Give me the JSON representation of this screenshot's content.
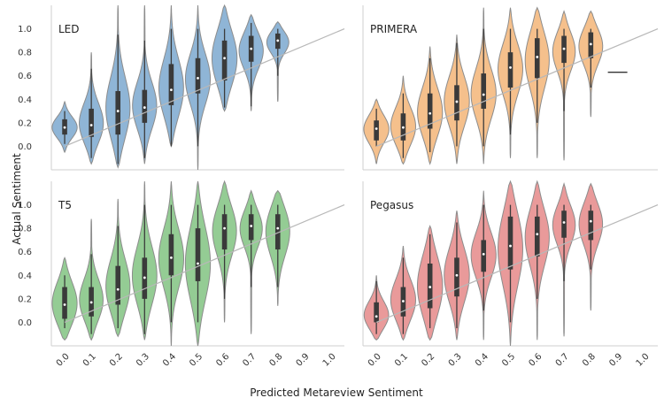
{
  "chart_data": {
    "type": "violin",
    "xlabel": "Predicted Metareview Sentiment",
    "ylabel": "Actual Sentiment",
    "x_ticks": [
      "0.0",
      "0.1",
      "0.2",
      "0.3",
      "0.4",
      "0.5",
      "0.6",
      "0.7",
      "0.8",
      "0.9",
      "1.0"
    ],
    "y_ticks": [
      "0.0",
      "0.2",
      "0.4",
      "0.6",
      "0.8",
      "1.0"
    ],
    "xlim": [
      -0.05,
      1.05
    ],
    "ylim": [
      -0.2,
      1.2
    ],
    "reference_line": {
      "from": [
        0,
        0
      ],
      "to": [
        1.05,
        1.0
      ]
    },
    "panels": [
      {
        "title": "LED",
        "color": "#8fb5d6",
        "violins": [
          {
            "x": 0.0,
            "min": -0.05,
            "max": 0.38,
            "q1": 0.1,
            "median": 0.16,
            "q3": 0.23,
            "wlo": 0.02,
            "whi": 0.3
          },
          {
            "x": 0.1,
            "min": -0.15,
            "max": 0.8,
            "q1": 0.08,
            "median": 0.18,
            "q3": 0.32,
            "wlo": -0.1,
            "whi": 0.66
          },
          {
            "x": 0.2,
            "min": -0.18,
            "max": 1.2,
            "q1": 0.1,
            "median": 0.3,
            "q3": 0.47,
            "wlo": -0.15,
            "whi": 0.95
          },
          {
            "x": 0.3,
            "min": -0.15,
            "max": 1.2,
            "q1": 0.2,
            "median": 0.33,
            "q3": 0.48,
            "wlo": -0.1,
            "whi": 0.9
          },
          {
            "x": 0.4,
            "min": 0.0,
            "max": 1.2,
            "q1": 0.35,
            "median": 0.48,
            "q3": 0.7,
            "wlo": 0.0,
            "whi": 1.0
          },
          {
            "x": 0.5,
            "min": -0.2,
            "max": 1.2,
            "q1": 0.45,
            "median": 0.58,
            "q3": 0.75,
            "wlo": 0.0,
            "whi": 1.0
          },
          {
            "x": 0.6,
            "min": 0.3,
            "max": 1.2,
            "q1": 0.56,
            "median": 0.75,
            "q3": 0.9,
            "wlo": 0.33,
            "whi": 1.0
          },
          {
            "x": 0.7,
            "min": 0.3,
            "max": 1.12,
            "q1": 0.72,
            "median": 0.83,
            "q3": 0.94,
            "wlo": 0.34,
            "whi": 1.05
          },
          {
            "x": 0.8,
            "min": 0.38,
            "max": 1.06,
            "q1": 0.83,
            "median": 0.9,
            "q3": 0.96,
            "wlo": 0.6,
            "whi": 1.0
          }
        ]
      },
      {
        "title": "PRIMERA",
        "color": "#f5c08c",
        "violins": [
          {
            "x": 0.0,
            "min": -0.15,
            "max": 0.4,
            "q1": 0.05,
            "median": 0.15,
            "q3": 0.22,
            "wlo": 0.0,
            "whi": 0.32
          },
          {
            "x": 0.1,
            "min": -0.15,
            "max": 0.6,
            "q1": 0.05,
            "median": 0.16,
            "q3": 0.28,
            "wlo": -0.1,
            "whi": 0.45
          },
          {
            "x": 0.2,
            "min": -0.15,
            "max": 0.85,
            "q1": 0.15,
            "median": 0.28,
            "q3": 0.45,
            "wlo": -0.05,
            "whi": 0.75
          },
          {
            "x": 0.3,
            "min": -0.15,
            "max": 0.95,
            "q1": 0.22,
            "median": 0.38,
            "q3": 0.52,
            "wlo": 0.0,
            "whi": 0.88
          },
          {
            "x": 0.4,
            "min": -0.15,
            "max": 1.18,
            "q1": 0.32,
            "median": 0.44,
            "q3": 0.62,
            "wlo": 0.0,
            "whi": 1.0
          },
          {
            "x": 0.5,
            "min": -0.1,
            "max": 1.18,
            "q1": 0.5,
            "median": 0.67,
            "q3": 0.8,
            "wlo": 0.1,
            "whi": 1.0
          },
          {
            "x": 0.6,
            "min": -0.1,
            "max": 1.18,
            "q1": 0.58,
            "median": 0.76,
            "q3": 0.92,
            "wlo": 0.2,
            "whi": 1.0
          },
          {
            "x": 0.7,
            "min": -0.12,
            "max": 1.15,
            "q1": 0.71,
            "median": 0.83,
            "q3": 0.94,
            "wlo": 0.3,
            "whi": 1.0
          },
          {
            "x": 0.8,
            "min": 0.25,
            "max": 1.15,
            "q1": 0.75,
            "median": 0.87,
            "q3": 0.97,
            "wlo": 0.5,
            "whi": 1.0
          },
          {
            "x": 0.9,
            "flat": true,
            "value": 0.63
          }
        ]
      },
      {
        "title": "T5",
        "color": "#94cc94",
        "violins": [
          {
            "x": 0.0,
            "min": -0.15,
            "max": 0.55,
            "q1": 0.03,
            "median": 0.15,
            "q3": 0.3,
            "wlo": -0.05,
            "whi": 0.4
          },
          {
            "x": 0.1,
            "min": -0.15,
            "max": 0.88,
            "q1": 0.05,
            "median": 0.17,
            "q3": 0.3,
            "wlo": -0.1,
            "whi": 0.58
          },
          {
            "x": 0.2,
            "min": -0.12,
            "max": 1.05,
            "q1": 0.15,
            "median": 0.28,
            "q3": 0.48,
            "wlo": -0.05,
            "whi": 0.82
          },
          {
            "x": 0.3,
            "min": -0.15,
            "max": 1.2,
            "q1": 0.2,
            "median": 0.38,
            "q3": 0.55,
            "wlo": -0.1,
            "whi": 1.0
          },
          {
            "x": 0.4,
            "min": -0.2,
            "max": 1.2,
            "q1": 0.4,
            "median": 0.55,
            "q3": 0.75,
            "wlo": 0.0,
            "whi": 1.0
          },
          {
            "x": 0.5,
            "min": -0.2,
            "max": 1.2,
            "q1": 0.35,
            "median": 0.5,
            "q3": 0.8,
            "wlo": 0.0,
            "whi": 1.0
          },
          {
            "x": 0.6,
            "min": 0.0,
            "max": 1.2,
            "q1": 0.62,
            "median": 0.8,
            "q3": 0.92,
            "wlo": 0.2,
            "whi": 1.0
          },
          {
            "x": 0.7,
            "min": -0.1,
            "max": 1.12,
            "q1": 0.7,
            "median": 0.82,
            "q3": 0.92,
            "wlo": 0.3,
            "whi": 1.0
          },
          {
            "x": 0.8,
            "min": 0.14,
            "max": 1.12,
            "q1": 0.62,
            "median": 0.8,
            "q3": 0.92,
            "wlo": 0.3,
            "whi": 1.0
          }
        ]
      },
      {
        "title": "Pegasus",
        "color": "#e99a9a",
        "violins": [
          {
            "x": 0.0,
            "min": -0.15,
            "max": 0.4,
            "q1": 0.0,
            "median": 0.05,
            "q3": 0.17,
            "wlo": -0.1,
            "whi": 0.35
          },
          {
            "x": 0.1,
            "min": -0.15,
            "max": 0.65,
            "q1": 0.05,
            "median": 0.18,
            "q3": 0.3,
            "wlo": -0.1,
            "whi": 0.55
          },
          {
            "x": 0.2,
            "min": -0.15,
            "max": 0.82,
            "q1": 0.12,
            "median": 0.3,
            "q3": 0.5,
            "wlo": -0.05,
            "whi": 0.75
          },
          {
            "x": 0.3,
            "min": -0.15,
            "max": 0.95,
            "q1": 0.22,
            "median": 0.4,
            "q3": 0.55,
            "wlo": -0.05,
            "whi": 0.85
          },
          {
            "x": 0.4,
            "min": -0.15,
            "max": 1.12,
            "q1": 0.43,
            "median": 0.58,
            "q3": 0.7,
            "wlo": 0.1,
            "whi": 1.0
          },
          {
            "x": 0.5,
            "min": -0.2,
            "max": 1.2,
            "q1": 0.45,
            "median": 0.65,
            "q3": 0.9,
            "wlo": 0.0,
            "whi": 1.0
          },
          {
            "x": 0.6,
            "min": -0.15,
            "max": 1.2,
            "q1": 0.56,
            "median": 0.75,
            "q3": 0.9,
            "wlo": 0.2,
            "whi": 1.0
          },
          {
            "x": 0.7,
            "min": -0.12,
            "max": 1.18,
            "q1": 0.72,
            "median": 0.85,
            "q3": 0.95,
            "wlo": 0.35,
            "whi": 1.0
          },
          {
            "x": 0.8,
            "min": 0.1,
            "max": 1.18,
            "q1": 0.7,
            "median": 0.86,
            "q3": 0.95,
            "wlo": 0.45,
            "whi": 1.0
          }
        ]
      }
    ]
  }
}
